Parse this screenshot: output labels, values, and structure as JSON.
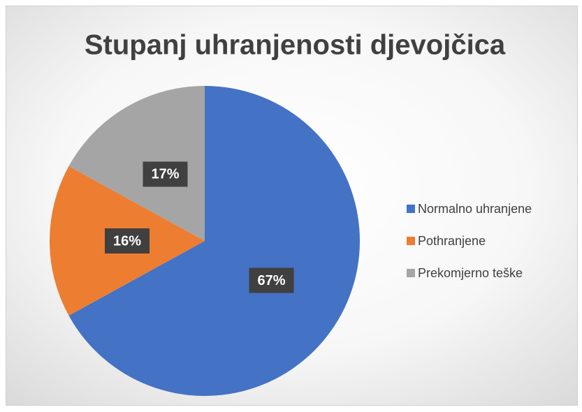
{
  "chart_data": {
    "type": "pie",
    "title": "Stupanj uhranjenosti djevojčica",
    "categories": [
      "Normalno uhranjene",
      "Pothranjene",
      "Prekomjerno teške"
    ],
    "values": [
      67,
      16,
      17
    ],
    "value_labels": [
      "67%",
      "16%",
      "17%"
    ],
    "colors": [
      "#4472c4",
      "#ed7d31",
      "#a5a5a5"
    ],
    "legend": "right"
  }
}
